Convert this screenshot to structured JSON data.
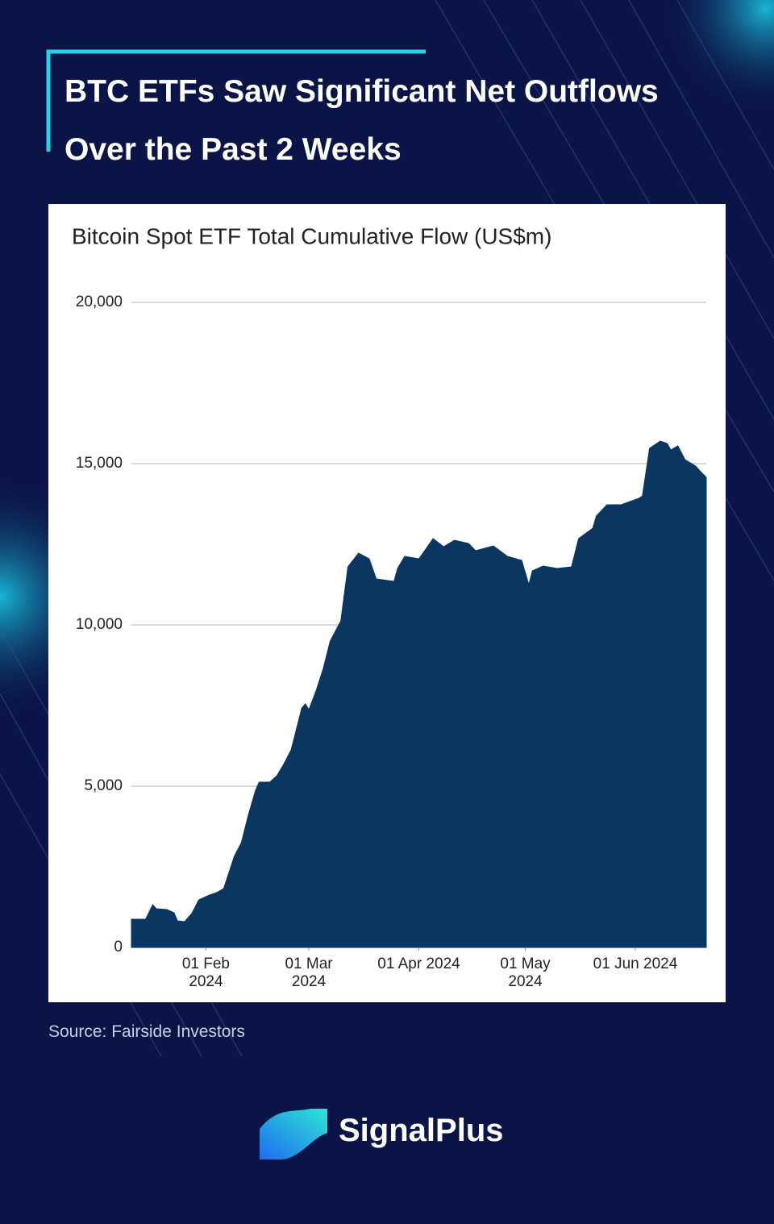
{
  "header": {
    "title": [
      "BTC ETFs Saw Significant Net Outflows",
      "Over the Past 2 Weeks"
    ]
  },
  "chart_data": {
    "type": "area",
    "title": "Bitcoin Spot ETF Total Cumulative Flow (US$m)",
    "color": "#0a3660",
    "grid": true,
    "x": [
      "2024-01-11",
      "2024-01-15",
      "2024-01-17",
      "2024-01-18",
      "2024-01-21",
      "2024-01-23",
      "2024-01-24",
      "2024-01-26",
      "2024-01-28",
      "2024-01-30",
      "2024-02-02",
      "2024-02-04",
      "2024-02-06",
      "2024-02-09",
      "2024-02-11",
      "2024-02-13",
      "2024-02-15",
      "2024-02-16",
      "2024-02-19",
      "2024-02-21",
      "2024-02-23",
      "2024-02-25",
      "2024-02-28",
      "2024-02-29",
      "2024-03-01",
      "2024-03-03",
      "2024-03-05",
      "2024-03-07",
      "2024-03-10",
      "2024-03-12",
      "2024-03-15",
      "2024-03-18",
      "2024-03-20",
      "2024-03-25",
      "2024-03-26",
      "2024-03-28",
      "2024-04-01",
      "2024-04-02",
      "2024-04-05",
      "2024-04-08",
      "2024-04-11",
      "2024-04-15",
      "2024-04-17",
      "2024-04-22",
      "2024-04-26",
      "2024-04-30",
      "2024-05-02",
      "2024-05-03",
      "2024-05-06",
      "2024-05-10",
      "2024-05-14",
      "2024-05-16",
      "2024-05-20",
      "2024-05-21",
      "2024-05-24",
      "2024-05-28",
      "2024-06-02",
      "2024-06-03",
      "2024-06-05",
      "2024-06-08",
      "2024-06-10",
      "2024-06-11",
      "2024-06-13",
      "2024-06-15",
      "2024-06-18",
      "2024-06-19",
      "2024-06-21"
    ],
    "values": [
      875,
      875,
      1325,
      1200,
      1175,
      1075,
      825,
      800,
      1050,
      1475,
      1625,
      1700,
      1825,
      2825,
      3250,
      4125,
      4875,
      5125,
      5125,
      5325,
      5700,
      6125,
      7425,
      7550,
      7375,
      7950,
      8625,
      9500,
      10125,
      11800,
      12225,
      12050,
      11425,
      11350,
      11750,
      12125,
      12050,
      12200,
      12675,
      12425,
      12625,
      12525,
      12300,
      12450,
      12125,
      12000,
      11250,
      11675,
      11825,
      11750,
      11800,
      12675,
      13000,
      13375,
      13725,
      13725,
      13925,
      14000,
      15475,
      15700,
      15625,
      15425,
      15550,
      15125,
      14925,
      14800,
      14575
    ],
    "xlim": [
      "2024-01-11",
      "2024-06-21"
    ],
    "xticks": [
      {
        "value": "2024-02-01",
        "label": [
          "01 Feb",
          "2024"
        ]
      },
      {
        "value": "2024-03-01",
        "label": [
          "01 Mar",
          "2024"
        ]
      },
      {
        "value": "2024-04-01",
        "label": [
          "01 Apr 2024"
        ]
      },
      {
        "value": "2024-05-01",
        "label": [
          "01 May",
          "2024"
        ]
      },
      {
        "value": "2024-06-01",
        "label": [
          "01 Jun 2024"
        ]
      }
    ],
    "ylim": [
      0,
      20000
    ],
    "yticks": [
      0,
      {
        "value": 5000,
        "label": "5,000"
      },
      {
        "value": 10000,
        "label": "10,000"
      },
      {
        "value": 15000,
        "label": "15,000"
      },
      {
        "value": 20000,
        "label": "20,000"
      }
    ]
  },
  "source": "Source: Fairside Investors",
  "brand": "SignalPlus"
}
